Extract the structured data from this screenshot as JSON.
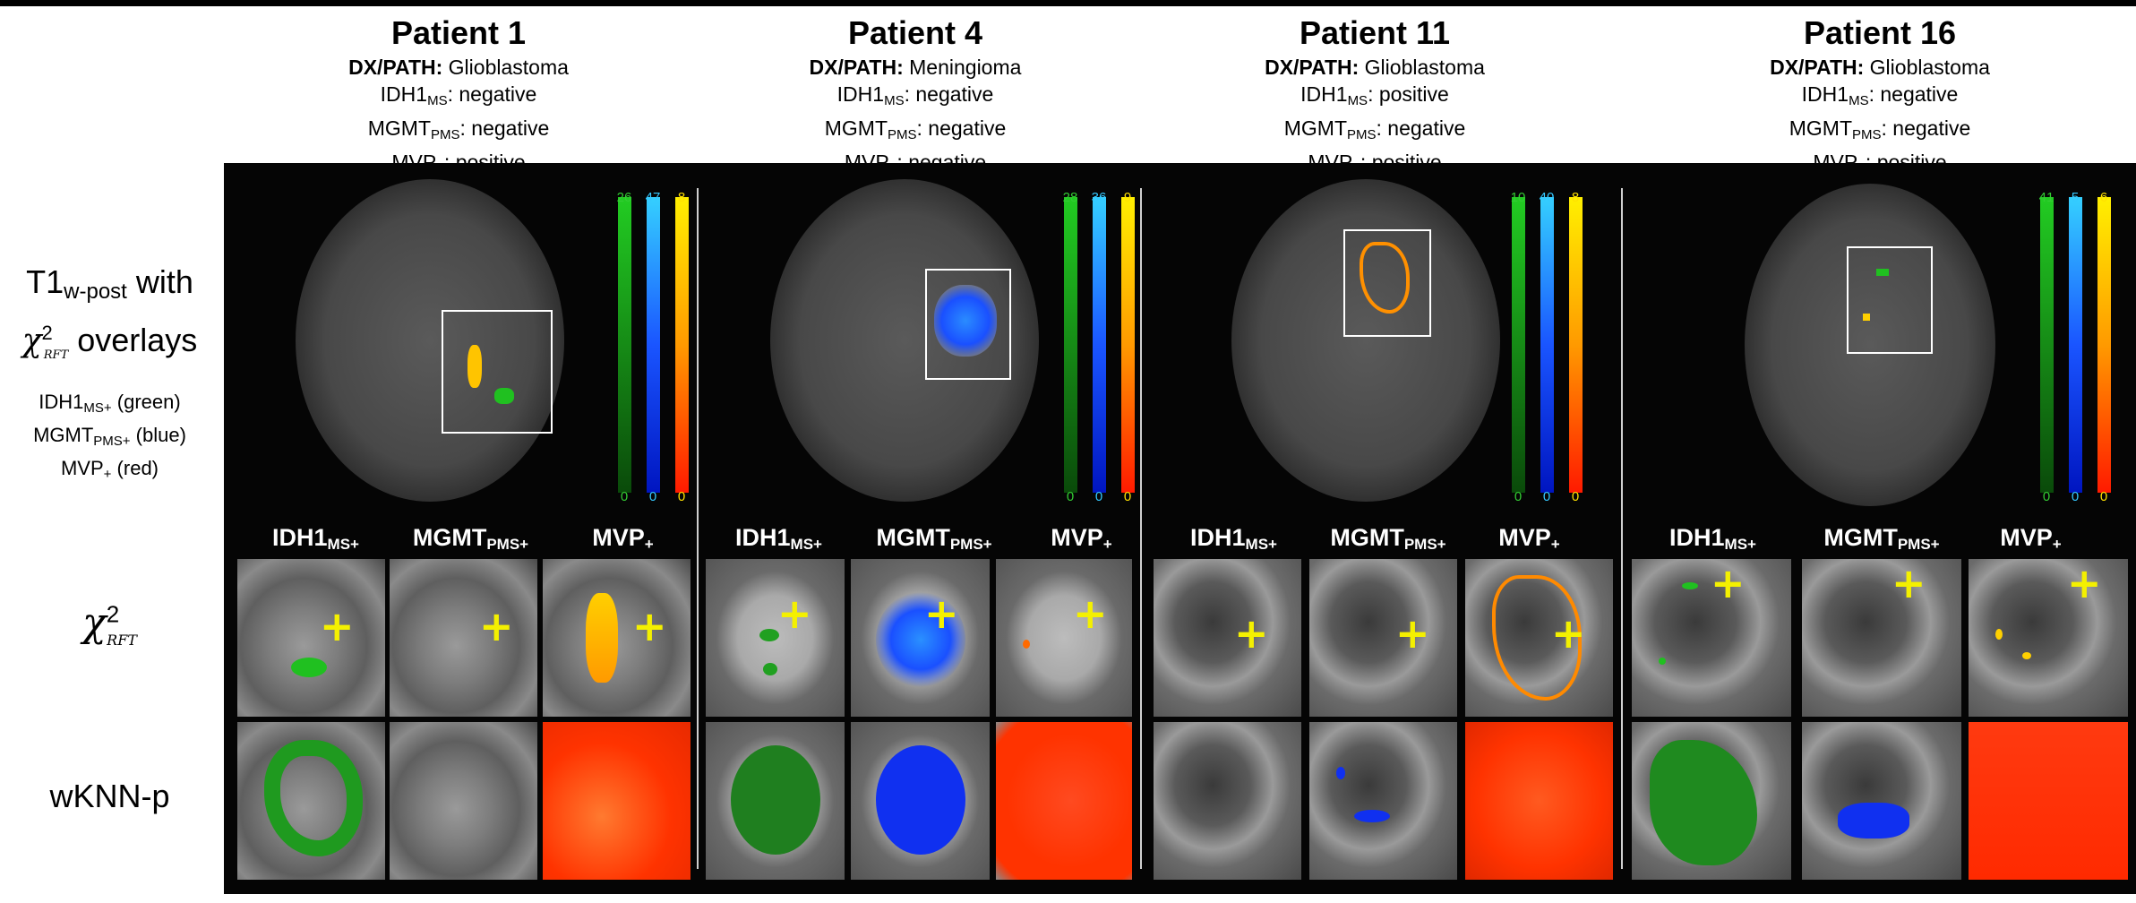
{
  "patients": [
    {
      "name": "Patient 1",
      "dx_label": "DX/PATH:",
      "dx_value": "Glioblastoma",
      "idh_value": "negative",
      "mgmt_value": "negative",
      "mvp_value": "positive",
      "colorbar_top": [
        "26",
        "47",
        "8"
      ],
      "colorbar_bottom": [
        "0",
        "0",
        "0"
      ]
    },
    {
      "name": "Patient 4",
      "dx_label": "DX/PATH:",
      "dx_value": "Meningioma",
      "idh_value": "negative",
      "mgmt_value": "negative",
      "mvp_value": "negative",
      "colorbar_top": [
        "28",
        "36",
        "9"
      ],
      "colorbar_bottom": [
        "0",
        "0",
        "0"
      ]
    },
    {
      "name": "Patient 11",
      "dx_label": "DX/PATH:",
      "dx_value": "Glioblastoma",
      "idh_value": "positive",
      "mgmt_value": "negative",
      "mvp_value": "positive",
      "colorbar_top": [
        "10",
        "40",
        "8"
      ],
      "colorbar_bottom": [
        "0",
        "0",
        "0"
      ]
    },
    {
      "name": "Patient 16",
      "dx_label": "DX/PATH:",
      "dx_value": "Glioblastoma",
      "idh_value": "negative",
      "mgmt_value": "negative",
      "mvp_value": "positive",
      "colorbar_top": [
        "41",
        "5",
        "6"
      ],
      "colorbar_bottom": [
        "0",
        "0",
        "0"
      ]
    }
  ],
  "labels": {
    "idh_base": "IDH1",
    "idh_sub": "MS",
    "mgmt_base": "MGMT",
    "mgmt_sub": "PMS",
    "mvp_base": "MVP",
    "mvp_sub": "+",
    "col_idh_sub": "MS+",
    "col_mgmt_sub": "PMS+",
    "row1_t1": "T1",
    "row1_t1_sub": "w-post",
    "row1_with": " with",
    "row1_chi": "χ",
    "row1_chi_sup": "2",
    "row1_chi_sub": "RFT",
    "row1_overlays": " overlays",
    "legend_idh": " (green)",
    "legend_mgmt": " (blue)",
    "legend_mvp": " (red)",
    "row2_chi": "χ",
    "row2_chi_sup": "2",
    "row2_chi_sub": "RFT",
    "row3": "wKNN-p",
    "plus_marker": "+"
  },
  "colors": {
    "idh": "#1fbf1f",
    "mgmt": "#1a6fff",
    "mvp": "#ff3300",
    "mvp_chi": "#ffb000",
    "crosshair": "#f4f000"
  }
}
